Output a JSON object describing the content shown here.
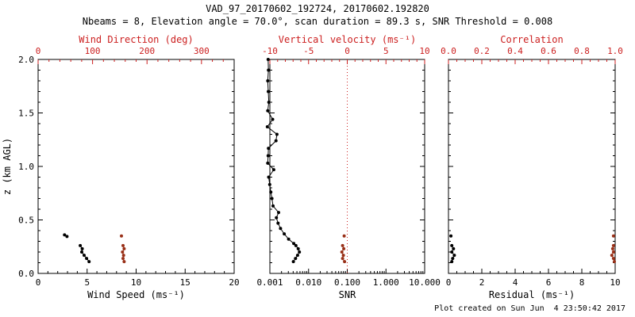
{
  "title": "VAD_97_20170602_192724, 20170602.192820",
  "subtitle": "Nbeams = 8, Elevation angle = 70.0°, scan duration = 89.3 s, SNR Threshold = 0.008",
  "footer": "Plot created on Sun Jun  4 23:50:42 2017",
  "ylabel": "z (km AGL)",
  "colors": {
    "black": "#000000",
    "axis_red": "#cc2020",
    "dot_red": "#993018",
    "background": "#ffffff"
  },
  "chart_data": [
    {
      "type": "scatter",
      "name": "wind",
      "ylim": [
        0,
        2
      ],
      "yminor": 0.1,
      "ytick_labels": true,
      "yticks": [
        {
          "v": 0,
          "l": "0.0"
        },
        {
          "v": 0.5,
          "l": "0.5"
        },
        {
          "v": 1,
          "l": "1.0"
        },
        {
          "v": 1.5,
          "l": "1.5"
        },
        {
          "v": 2,
          "l": "2.0"
        }
      ],
      "bottom_axis": {
        "label": "Wind Speed (ms⁻¹)",
        "lim": [
          0,
          20
        ],
        "log": false,
        "minor_step": 1,
        "color": "black",
        "ticks": [
          {
            "v": 0,
            "l": "0"
          },
          {
            "v": 5,
            "l": "5"
          },
          {
            "v": 10,
            "l": "10"
          },
          {
            "v": 15,
            "l": "15"
          },
          {
            "v": 20,
            "l": "20"
          }
        ]
      },
      "top_axis": {
        "label": "Wind Direction (deg)",
        "lim": [
          0,
          360
        ],
        "log": false,
        "minor_step": 20,
        "color": "red",
        "ticks": [
          {
            "v": 0,
            "l": "0"
          },
          {
            "v": 100,
            "l": "100"
          },
          {
            "v": 200,
            "l": "200"
          },
          {
            "v": 300,
            "l": "300"
          }
        ]
      },
      "series": [
        {
          "name": "wind-speed",
          "axis": "bottom",
          "color": "black",
          "segments": [
            [
              [
                2.7,
                0.36
              ],
              [
                2.95,
                0.345
              ]
            ],
            [
              [
                4.3,
                0.26
              ],
              [
                4.5,
                0.23
              ],
              [
                4.45,
                0.2
              ],
              [
                4.7,
                0.17
              ],
              [
                4.95,
                0.14
              ],
              [
                5.2,
                0.11
              ]
            ]
          ]
        },
        {
          "name": "wind-direction",
          "axis": "top",
          "color": "red",
          "segments": [
            [
              [
                153,
                0.35
              ]
            ],
            [
              [
                156,
                0.26
              ],
              [
                158,
                0.23
              ],
              [
                155,
                0.2
              ],
              [
                157,
                0.17
              ],
              [
                156,
                0.14
              ],
              [
                158,
                0.11
              ]
            ]
          ]
        }
      ]
    },
    {
      "type": "scatter",
      "name": "snr",
      "ylim": [
        0,
        2
      ],
      "yminor": 0.1,
      "ytick_labels": false,
      "yticks": [
        {
          "v": 0,
          "l": "0.0"
        },
        {
          "v": 0.5,
          "l": "0.5"
        },
        {
          "v": 1,
          "l": "1.0"
        },
        {
          "v": 1.5,
          "l": "1.5"
        },
        {
          "v": 2,
          "l": "2.0"
        }
      ],
      "bottom_axis": {
        "label": "SNR",
        "lim": [
          0.001,
          10
        ],
        "log": true,
        "minor_step": null,
        "color": "black",
        "ticks": [
          {
            "v": 0.001,
            "l": "0.001"
          },
          {
            "v": 0.01,
            "l": "0.010"
          },
          {
            "v": 0.1,
            "l": "0.100"
          },
          {
            "v": 1,
            "l": "1.000"
          },
          {
            "v": 10,
            "l": "10.000"
          }
        ]
      },
      "top_axis": {
        "label": "Vertical velocity (ms⁻¹)",
        "lim": [
          -10,
          10
        ],
        "log": false,
        "minor_step": 1,
        "color": "red",
        "ticks": [
          {
            "v": -10,
            "l": "-10"
          },
          {
            "v": -5,
            "l": "-5"
          },
          {
            "v": 0,
            "l": "0"
          },
          {
            "v": 5,
            "l": "5"
          },
          {
            "v": 10,
            "l": "10"
          }
        ]
      },
      "refline": {
        "axis": "top",
        "value": 0
      },
      "series": [
        {
          "name": "snr-profile",
          "axis": "bottom",
          "color": "black",
          "segments": [
            [
              [
                0.0009,
                2.0
              ],
              [
                0.00092,
                1.9
              ],
              [
                0.00088,
                1.8
              ],
              [
                0.00091,
                1.7
              ],
              [
                0.00094,
                1.6
              ],
              [
                0.00088,
                1.52
              ],
              [
                0.00118,
                1.44
              ],
              [
                0.00086,
                1.37
              ],
              [
                0.00152,
                1.3
              ],
              [
                0.00144,
                1.24
              ],
              [
                0.00092,
                1.17
              ],
              [
                0.0009,
                1.1
              ],
              [
                0.00088,
                1.03
              ],
              [
                0.00126,
                0.97
              ],
              [
                0.00093,
                0.9
              ],
              [
                0.00099,
                0.83
              ],
              [
                0.00106,
                0.76
              ],
              [
                0.00113,
                0.7
              ],
              [
                0.00121,
                0.63
              ],
              [
                0.00168,
                0.57
              ],
              [
                0.00147,
                0.52
              ],
              [
                0.00163,
                0.47
              ],
              [
                0.00188,
                0.42
              ],
              [
                0.00235,
                0.37
              ],
              [
                0.00305,
                0.32
              ],
              [
                0.00415,
                0.28
              ],
              [
                0.0047,
                0.26
              ],
              [
                0.0054,
                0.23
              ],
              [
                0.0058,
                0.2
              ],
              [
                0.0052,
                0.17
              ],
              [
                0.0046,
                0.14
              ],
              [
                0.00405,
                0.11
              ]
            ]
          ]
        },
        {
          "name": "vertical-velocity",
          "axis": "top",
          "color": "red",
          "segments": [
            [
              [
                -0.4,
                0.35
              ]
            ],
            [
              [
                -0.6,
                0.26
              ],
              [
                -0.45,
                0.23
              ],
              [
                -0.7,
                0.2
              ],
              [
                -0.5,
                0.17
              ],
              [
                -0.6,
                0.14
              ],
              [
                -0.35,
                0.11
              ]
            ]
          ]
        }
      ]
    },
    {
      "type": "scatter",
      "name": "residual",
      "ylim": [
        0,
        2
      ],
      "yminor": 0.1,
      "ytick_labels": false,
      "yticks": [
        {
          "v": 0,
          "l": "0.0"
        },
        {
          "v": 0.5,
          "l": "0.5"
        },
        {
          "v": 1,
          "l": "1.0"
        },
        {
          "v": 1.5,
          "l": "1.5"
        },
        {
          "v": 2,
          "l": "2.0"
        }
      ],
      "bottom_axis": {
        "label": "Residual (ms⁻¹)",
        "lim": [
          0,
          10
        ],
        "log": false,
        "minor_step": 0.5,
        "color": "black",
        "ticks": [
          {
            "v": 0,
            "l": "0"
          },
          {
            "v": 2,
            "l": "2"
          },
          {
            "v": 4,
            "l": "4"
          },
          {
            "v": 6,
            "l": "6"
          },
          {
            "v": 8,
            "l": "8"
          },
          {
            "v": 10,
            "l": "10"
          }
        ]
      },
      "top_axis": {
        "label": "Correlation",
        "lim": [
          0,
          1
        ],
        "log": false,
        "minor_step": 0.05,
        "color": "red",
        "ticks": [
          {
            "v": 0,
            "l": "0.0"
          },
          {
            "v": 0.2,
            "l": "0.2"
          },
          {
            "v": 0.4,
            "l": "0.4"
          },
          {
            "v": 0.6,
            "l": "0.6"
          },
          {
            "v": 0.8,
            "l": "0.8"
          },
          {
            "v": 1,
            "l": "1.0"
          }
        ]
      },
      "series": [
        {
          "name": "residual",
          "axis": "bottom",
          "color": "black",
          "segments": [
            [
              [
                0.15,
                0.35
              ]
            ],
            [
              [
                0.2,
                0.26
              ],
              [
                0.3,
                0.23
              ],
              [
                0.2,
                0.2
              ],
              [
                0.35,
                0.17
              ],
              [
                0.25,
                0.14
              ],
              [
                0.2,
                0.11
              ]
            ]
          ]
        },
        {
          "name": "correlation",
          "axis": "top",
          "color": "red",
          "segments": [
            [
              [
                0.99,
                0.35
              ]
            ],
            [
              [
                0.99,
                0.26
              ],
              [
                0.985,
                0.23
              ],
              [
                0.99,
                0.2
              ],
              [
                0.98,
                0.17
              ],
              [
                0.99,
                0.14
              ],
              [
                0.995,
                0.11
              ]
            ]
          ]
        }
      ]
    }
  ]
}
